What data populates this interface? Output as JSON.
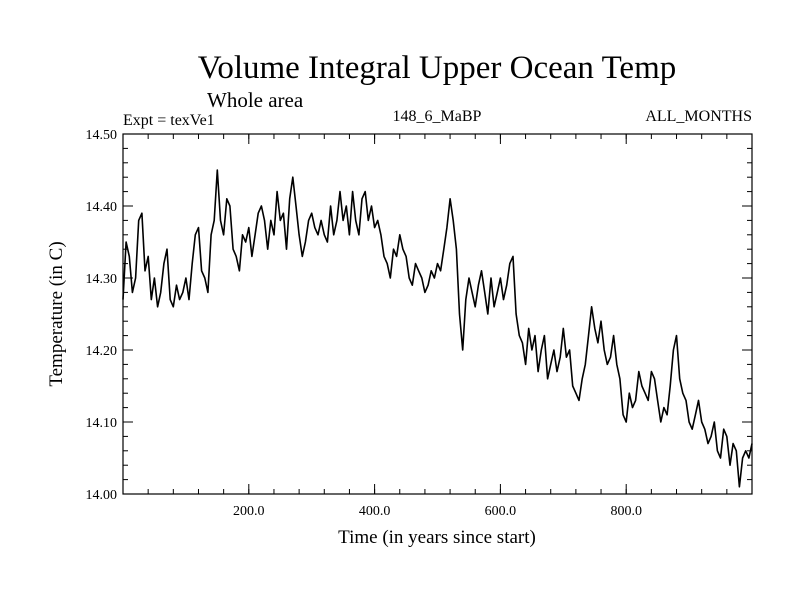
{
  "chart_data": {
    "type": "line",
    "title": "Volume Integral Upper Ocean Temp",
    "subtitle": "Whole area",
    "experiment_label": "Expt = texVe1",
    "run_label": "148_6_MaBP",
    "months_label": "ALL_MONTHS",
    "xlabel": "Time (in years since start)",
    "ylabel": "Temperature (in C)",
    "xlim": [
      0,
      1000
    ],
    "ylim": [
      14.0,
      14.5
    ],
    "x_ticks": [
      200,
      400,
      600,
      800
    ],
    "x_tick_labels": [
      "200.0",
      "400.0",
      "600.0",
      "800.0"
    ],
    "y_ticks": [
      14.0,
      14.1,
      14.2,
      14.3,
      14.4,
      14.5
    ],
    "y_tick_labels": [
      "14.00",
      "14.10",
      "14.20",
      "14.30",
      "14.40",
      "14.50"
    ],
    "grid": false,
    "series": [
      {
        "name": "texVe1",
        "x": [
          0,
          5,
          10,
          15,
          20,
          25,
          30,
          35,
          40,
          45,
          50,
          55,
          60,
          65,
          70,
          75,
          80,
          85,
          90,
          95,
          100,
          105,
          110,
          115,
          120,
          125,
          130,
          135,
          140,
          145,
          150,
          155,
          160,
          165,
          170,
          175,
          180,
          185,
          190,
          195,
          200,
          205,
          210,
          215,
          220,
          225,
          230,
          235,
          240,
          245,
          250,
          255,
          260,
          265,
          270,
          275,
          280,
          285,
          290,
          295,
          300,
          305,
          310,
          315,
          320,
          325,
          330,
          335,
          340,
          345,
          350,
          355,
          360,
          365,
          370,
          375,
          380,
          385,
          390,
          395,
          400,
          405,
          410,
          415,
          420,
          425,
          430,
          435,
          440,
          445,
          450,
          455,
          460,
          465,
          470,
          475,
          480,
          485,
          490,
          495,
          500,
          505,
          510,
          515,
          520,
          525,
          530,
          535,
          540,
          545,
          550,
          555,
          560,
          565,
          570,
          575,
          580,
          585,
          590,
          595,
          600,
          605,
          610,
          615,
          620,
          625,
          630,
          635,
          640,
          645,
          650,
          655,
          660,
          665,
          670,
          675,
          680,
          685,
          690,
          695,
          700,
          705,
          710,
          715,
          720,
          725,
          730,
          735,
          740,
          745,
          750,
          755,
          760,
          765,
          770,
          775,
          780,
          785,
          790,
          795,
          800,
          805,
          810,
          815,
          820,
          825,
          830,
          835,
          840,
          845,
          850,
          855,
          860,
          865,
          870,
          875,
          880,
          885,
          890,
          895,
          900,
          905,
          910,
          915,
          920,
          925,
          930,
          935,
          940,
          945,
          950,
          955,
          960,
          965,
          970,
          975,
          980,
          985,
          990,
          995,
          1000
        ],
        "y": [
          14.27,
          14.35,
          14.33,
          14.28,
          14.3,
          14.38,
          14.39,
          14.31,
          14.33,
          14.27,
          14.3,
          14.26,
          14.28,
          14.32,
          14.34,
          14.27,
          14.26,
          14.29,
          14.27,
          14.28,
          14.3,
          14.27,
          14.32,
          14.36,
          14.37,
          14.31,
          14.3,
          14.28,
          14.36,
          14.38,
          14.45,
          14.38,
          14.36,
          14.41,
          14.4,
          14.34,
          14.33,
          14.31,
          14.36,
          14.35,
          14.37,
          14.33,
          14.36,
          14.39,
          14.4,
          14.38,
          14.34,
          14.38,
          14.36,
          14.42,
          14.38,
          14.39,
          14.34,
          14.41,
          14.44,
          14.4,
          14.36,
          14.33,
          14.35,
          14.38,
          14.39,
          14.37,
          14.36,
          14.38,
          14.36,
          14.35,
          14.4,
          14.36,
          14.38,
          14.42,
          14.38,
          14.4,
          14.36,
          14.42,
          14.38,
          14.36,
          14.41,
          14.42,
          14.38,
          14.4,
          14.37,
          14.38,
          14.36,
          14.33,
          14.32,
          14.3,
          14.34,
          14.33,
          14.36,
          14.34,
          14.33,
          14.3,
          14.29,
          14.32,
          14.31,
          14.3,
          14.28,
          14.29,
          14.31,
          14.3,
          14.32,
          14.31,
          14.34,
          14.37,
          14.41,
          14.38,
          14.34,
          14.25,
          14.2,
          14.27,
          14.3,
          14.28,
          14.26,
          14.29,
          14.31,
          14.28,
          14.25,
          14.3,
          14.26,
          14.28,
          14.3,
          14.27,
          14.29,
          14.32,
          14.33,
          14.25,
          14.22,
          14.21,
          14.18,
          14.23,
          14.2,
          14.22,
          14.17,
          14.2,
          14.22,
          14.16,
          14.18,
          14.2,
          14.17,
          14.19,
          14.23,
          14.19,
          14.2,
          14.15,
          14.14,
          14.13,
          14.16,
          14.18,
          14.22,
          14.26,
          14.23,
          14.21,
          14.24,
          14.2,
          14.18,
          14.19,
          14.22,
          14.18,
          14.16,
          14.11,
          14.1,
          14.14,
          14.12,
          14.13,
          14.17,
          14.15,
          14.14,
          14.13,
          14.17,
          14.16,
          14.13,
          14.1,
          14.12,
          14.11,
          14.15,
          14.2,
          14.22,
          14.16,
          14.14,
          14.13,
          14.1,
          14.09,
          14.11,
          14.13,
          14.1,
          14.09,
          14.07,
          14.08,
          14.1,
          14.06,
          14.05,
          14.09,
          14.08,
          14.04,
          14.07,
          14.06,
          14.01,
          14.05,
          14.06,
          14.05,
          14.07
        ]
      }
    ],
    "colors": {
      "line": "#000000",
      "axis": "#000000",
      "background": "#ffffff"
    }
  }
}
